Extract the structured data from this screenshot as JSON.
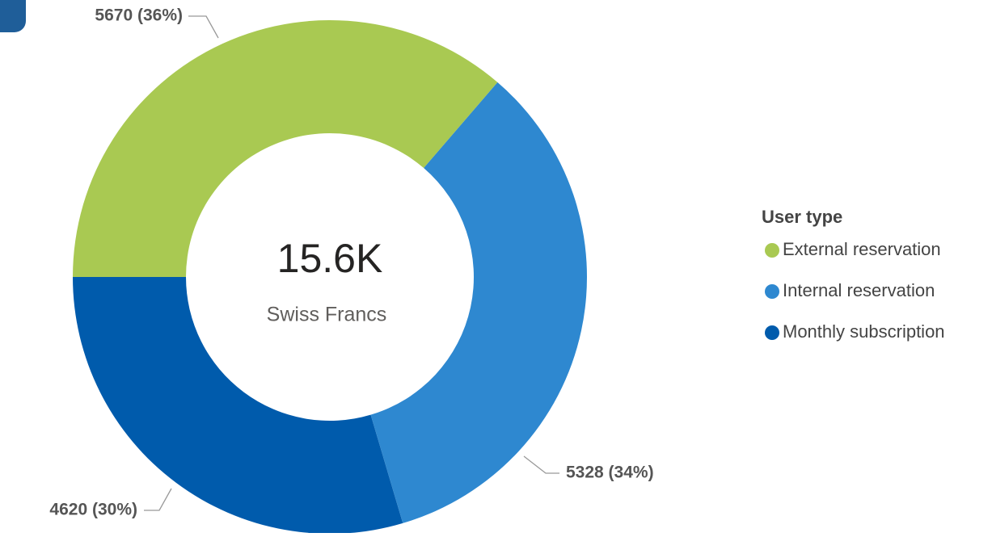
{
  "chart_data": {
    "type": "donut",
    "center_label": "15.6K",
    "center_sublabel": "Swiss Francs",
    "legend_title": "User type",
    "categories": [
      "External reservation",
      "Internal reservation",
      "Monthly subscription"
    ],
    "values": [
      5670,
      5328,
      4620
    ],
    "value_labels": [
      "5670 (36%)",
      "5328 (34%)",
      "4620 (30%)"
    ],
    "colors": [
      "#a9c952",
      "#2e88d0",
      "#005bac"
    ],
    "legend": "right"
  }
}
